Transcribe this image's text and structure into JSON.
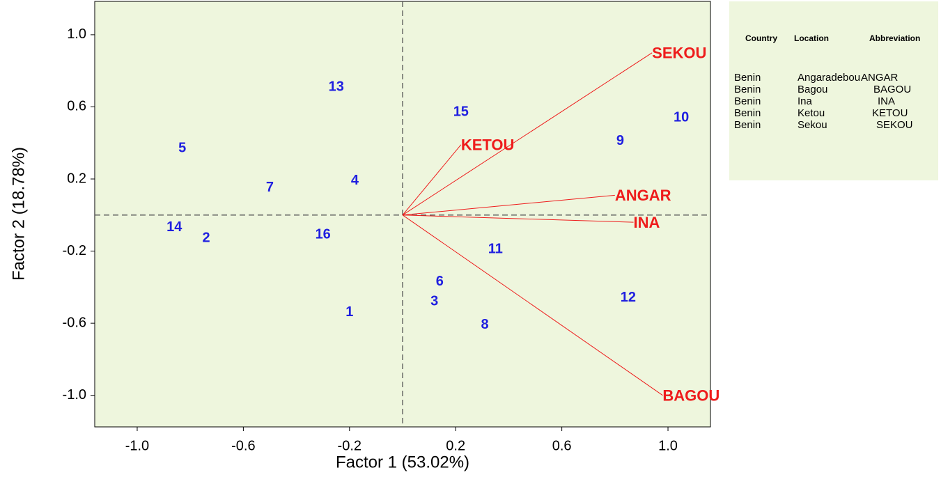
{
  "chart_data": {
    "type": "biplot",
    "x_label": "Factor 1 (53.02%)",
    "y_label": "Factor 2 (18.78%)",
    "xlim": [
      -1.16,
      1.16
    ],
    "ylim": [
      -1.175,
      1.185
    ],
    "xticks": [
      {
        "value": -1,
        "label": "-1.0"
      },
      -0.6,
      -0.2,
      0.2,
      0.6,
      {
        "value": 1,
        "label": "1.0"
      }
    ],
    "yticks": [
      {
        "value": -1,
        "label": "-1.0"
      },
      -0.6,
      -0.2,
      0.2,
      0.6,
      {
        "value": 1,
        "label": "1.0"
      }
    ],
    "point_color": "#1f1fe0",
    "vector_color": "#ee1c1c",
    "background": "#eef6dd",
    "points": [
      {
        "label": "1",
        "x": -0.2,
        "y": -0.54
      },
      {
        "label": "2",
        "x": -0.74,
        "y": -0.13
      },
      {
        "label": "3",
        "x": 0.12,
        "y": -0.48
      },
      {
        "label": "4",
        "x": -0.18,
        "y": 0.19
      },
      {
        "label": "5",
        "x": -0.83,
        "y": 0.37
      },
      {
        "label": "6",
        "x": 0.14,
        "y": -0.37
      },
      {
        "label": "7",
        "x": -0.5,
        "y": 0.15
      },
      {
        "label": "8",
        "x": 0.31,
        "y": -0.61
      },
      {
        "label": "9",
        "x": 0.82,
        "y": 0.41
      },
      {
        "label": "10",
        "x": 1.05,
        "y": 0.54
      },
      {
        "label": "11",
        "x": 0.35,
        "y": -0.19
      },
      {
        "label": "12",
        "x": 0.85,
        "y": -0.46
      },
      {
        "label": "13",
        "x": -0.25,
        "y": 0.71
      },
      {
        "label": "14",
        "x": -0.86,
        "y": -0.07
      },
      {
        "label": "15",
        "x": 0.22,
        "y": 0.57
      },
      {
        "label": "16",
        "x": -0.3,
        "y": -0.11
      }
    ],
    "vectors": [
      {
        "label": "SEKOU",
        "x": 0.94,
        "y": 0.9
      },
      {
        "label": "KETOU",
        "x": 0.22,
        "y": 0.39
      },
      {
        "label": "ANGAR",
        "x": 0.8,
        "y": 0.11
      },
      {
        "label": "INA",
        "x": 0.87,
        "y": -0.04
      },
      {
        "label": "BAGOU",
        "x": 0.98,
        "y": -1.0
      }
    ]
  },
  "legend_table": {
    "columns": [
      "Country",
      "Location",
      "Abbreviation"
    ],
    "rows": [
      [
        "Benin",
        "Angaradebou",
        "ANGAR"
      ],
      [
        "Benin",
        "Bagou",
        "BAGOU"
      ],
      [
        "Benin",
        "Ina",
        "INA"
      ],
      [
        "Benin",
        "Ketou",
        "KETOU"
      ],
      [
        "Benin",
        "Sekou",
        "SEKOU"
      ]
    ]
  }
}
